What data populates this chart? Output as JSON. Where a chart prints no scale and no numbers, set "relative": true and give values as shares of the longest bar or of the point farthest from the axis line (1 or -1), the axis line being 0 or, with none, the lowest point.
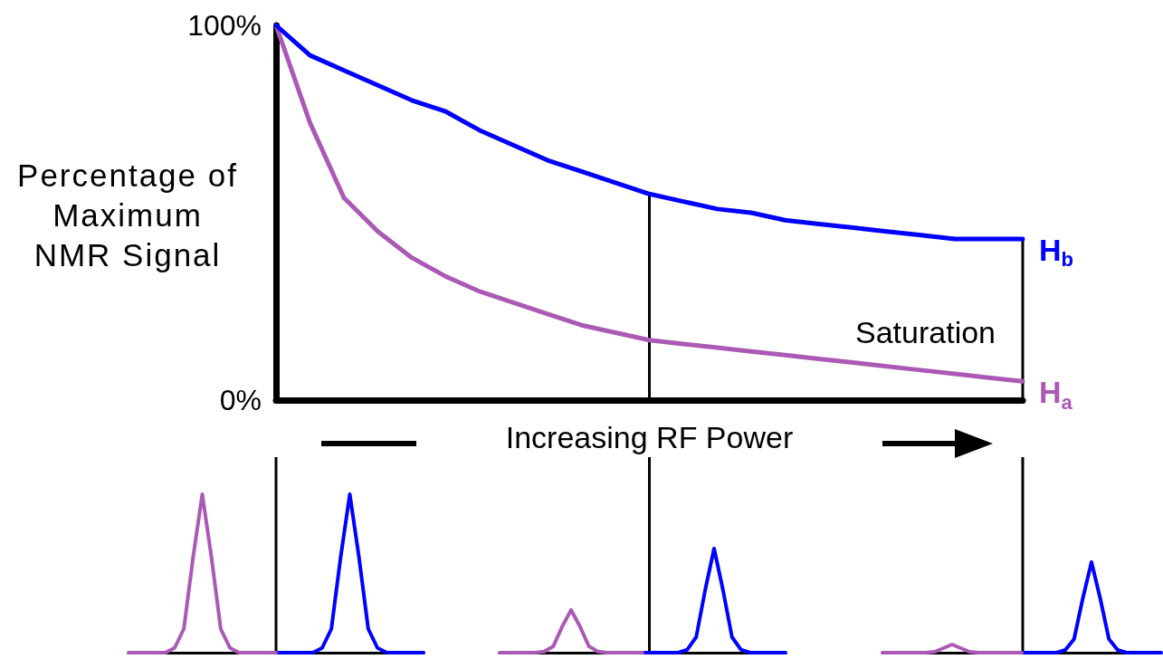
{
  "chart_data": [
    {
      "type": "line",
      "xlabel": "Increasing RF Power",
      "ylabel": "Percentage of Maximum NMR Signal",
      "categories": [
        null,
        null,
        null,
        null,
        null,
        null,
        null,
        null,
        null,
        null,
        null,
        null,
        null,
        null,
        null,
        null,
        null,
        null,
        null,
        null,
        null,
        null,
        null
      ],
      "series": [
        {
          "name": "H$_{b}$",
          "color": "#0000ff",
          "values": [
            100,
            92,
            88,
            84,
            80,
            77,
            72,
            68,
            64,
            61,
            58,
            55,
            53,
            51,
            50,
            48,
            47,
            46,
            45,
            44,
            43,
            43,
            43
          ]
        },
        {
          "name": "H$_{a}$",
          "color": "#aa5ab4",
          "values": [
            100,
            74,
            54,
            45,
            38,
            33,
            29,
            26,
            23,
            20,
            18,
            16,
            15,
            14,
            13,
            12,
            11,
            10,
            9,
            8,
            7,
            6,
            5
          ]
        }
      ],
      "ylim": [
        0,
        100
      ],
      "yticks": [
        {
          "value": 0,
          "label": "0%"
        },
        {
          "value": 100,
          "label": "100%"
        }
      ],
      "annotations": [
        "Saturation"
      ],
      "grid": false,
      "legend": false,
      "marker": "none",
      "line_style": "solid",
      "tick_labels": "y"
    },
    {
      "type": "line",
      "relative": true,
      "categories": [
        null,
        null,
        null,
        null,
        null,
        null,
        null,
        null,
        null,
        null,
        null,
        null,
        null,
        null,
        null,
        null,
        null,
        null,
        null,
        null,
        null,
        null,
        null,
        null,
        null,
        null,
        null,
        null,
        null,
        null,
        null,
        null,
        null
      ],
      "series": [
        {
          "color": "#aa5ab4",
          "values": [
            0,
            0,
            0,
            0,
            0,
            0.03,
            0.15,
            0.6,
            1,
            0.6,
            0.15,
            0.03,
            0,
            0,
            0,
            0,
            0,
            null,
            null,
            null,
            null,
            null,
            null,
            null,
            null,
            null,
            null,
            null,
            null,
            null,
            null,
            null,
            null
          ]
        },
        {
          "color": "#0000ff",
          "values": [
            null,
            null,
            null,
            null,
            null,
            null,
            null,
            null,
            null,
            null,
            null,
            null,
            null,
            null,
            null,
            null,
            0,
            0,
            0,
            0,
            0,
            0.03,
            0.15,
            0.6,
            1,
            0.6,
            0.15,
            0.03,
            0,
            0,
            0,
            0,
            0
          ]
        }
      ],
      "grid": false,
      "legend": false,
      "marker": "none",
      "line_style": "solid",
      "tick_labels": false
    },
    {
      "type": "line",
      "relative": true,
      "categories": [
        null,
        null,
        null,
        null,
        null,
        null,
        null,
        null,
        null,
        null,
        null,
        null,
        null,
        null,
        null,
        null,
        null,
        null,
        null,
        null,
        null,
        null,
        null,
        null,
        null,
        null,
        null,
        null,
        null,
        null,
        null,
        null,
        null
      ],
      "series": [
        {
          "color": "#aa5ab4",
          "values": [
            0,
            0,
            0,
            0,
            0,
            0.01,
            0.06,
            0.25,
            0.41,
            0.25,
            0.06,
            0.01,
            0,
            0,
            0,
            0,
            0,
            null,
            null,
            null,
            null,
            null,
            null,
            null,
            null,
            null,
            null,
            null,
            null,
            null,
            null,
            null,
            null
          ]
        },
        {
          "color": "#0000ff",
          "values": [
            null,
            null,
            null,
            null,
            null,
            null,
            null,
            null,
            null,
            null,
            null,
            null,
            null,
            null,
            null,
            null,
            0,
            0,
            0,
            0,
            0,
            0.03,
            0.15,
            0.6,
            1,
            0.6,
            0.15,
            0.03,
            0,
            0,
            0,
            0,
            0
          ]
        }
      ],
      "grid": false,
      "legend": false,
      "marker": "none",
      "line_style": "solid",
      "tick_labels": false
    },
    {
      "type": "line",
      "relative": true,
      "categories": [
        null,
        null,
        null,
        null,
        null,
        null,
        null,
        null,
        null,
        null,
        null,
        null,
        null,
        null,
        null,
        null,
        null,
        null,
        null,
        null,
        null,
        null,
        null,
        null,
        null,
        null,
        null,
        null,
        null,
        null,
        null,
        null,
        null
      ],
      "series": [
        {
          "color": "#aa5ab4",
          "values": [
            0,
            0,
            0,
            0,
            0,
            0,
            0.01,
            0.05,
            0.09,
            0.05,
            0.01,
            0,
            0,
            0,
            0,
            0,
            0,
            null,
            null,
            null,
            null,
            null,
            null,
            null,
            null,
            null,
            null,
            null,
            null,
            null,
            null,
            null,
            null
          ]
        },
        {
          "color": "#0000ff",
          "values": [
            null,
            null,
            null,
            null,
            null,
            null,
            null,
            null,
            null,
            null,
            null,
            null,
            null,
            null,
            null,
            null,
            0,
            0,
            0,
            0,
            0,
            0.03,
            0.15,
            0.6,
            1,
            0.6,
            0.15,
            0.03,
            0,
            0,
            0,
            0,
            0
          ]
        }
      ],
      "grid": false,
      "legend": false,
      "marker": "none",
      "line_style": "solid",
      "tick_labels": false
    }
  ]
}
